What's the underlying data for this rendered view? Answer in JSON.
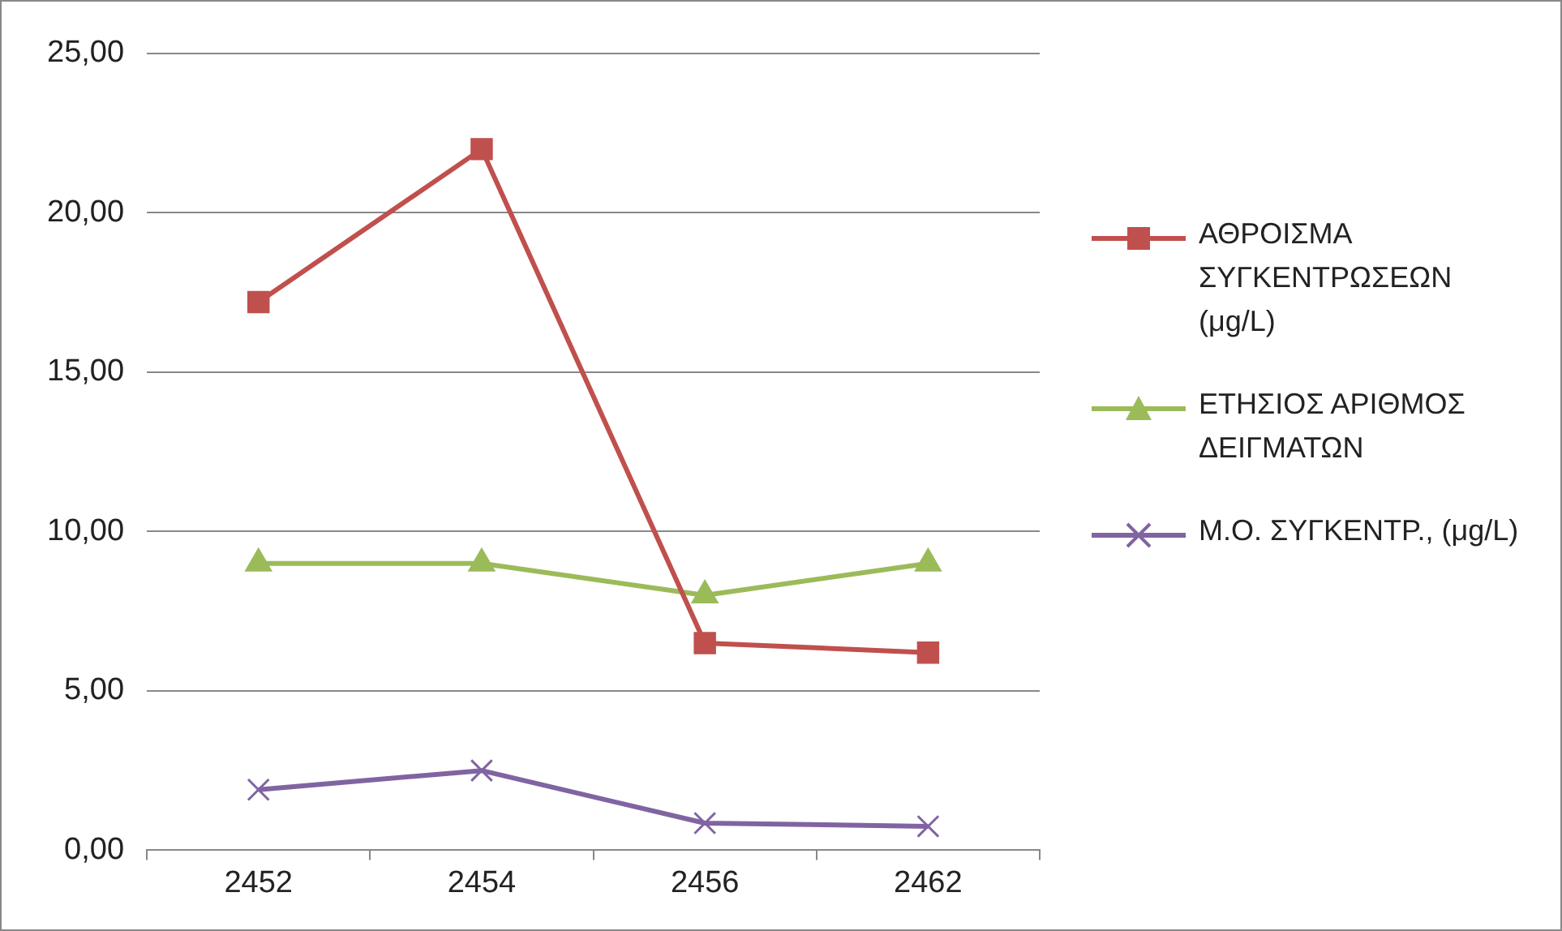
{
  "chart_data": {
    "type": "line",
    "categories": [
      "2452",
      "2454",
      "2456",
      "2462"
    ],
    "series": [
      {
        "name": "ΑΘΡΟΙΣΜΑ ΣΥΓΚΕΝΤΡΩΣΕΩΝ (μg/L)",
        "color": "#c0504d",
        "marker": "square",
        "values": [
          17.2,
          22,
          6.5,
          6.2
        ]
      },
      {
        "name": "ΕΤΗΣΙΟΣ ΑΡΙΘΜΟΣ ΔΕΙΓΜΑΤΩΝ",
        "color": "#9bbb59",
        "marker": "triangle",
        "values": [
          9,
          9,
          8,
          9
        ]
      },
      {
        "name": "Μ.Ο. ΣΥΓΚΕΝΤΡ., (μg/L)",
        "color": "#8064a2",
        "marker": "cross",
        "values": [
          1.9,
          2.5,
          0.85,
          0.75
        ]
      }
    ],
    "ylim": [
      0,
      25
    ],
    "yticks": [
      {
        "value": 0,
        "label": "0,00"
      },
      {
        "value": 5,
        "label": "5,00"
      },
      {
        "value": 10,
        "label": "10,00"
      },
      {
        "value": 15,
        "label": "15,00"
      },
      {
        "value": 20,
        "label": "20,00"
      },
      {
        "value": 25,
        "label": "25,00"
      }
    ],
    "grid": "y",
    "legend": "right",
    "line_style": "solid"
  }
}
